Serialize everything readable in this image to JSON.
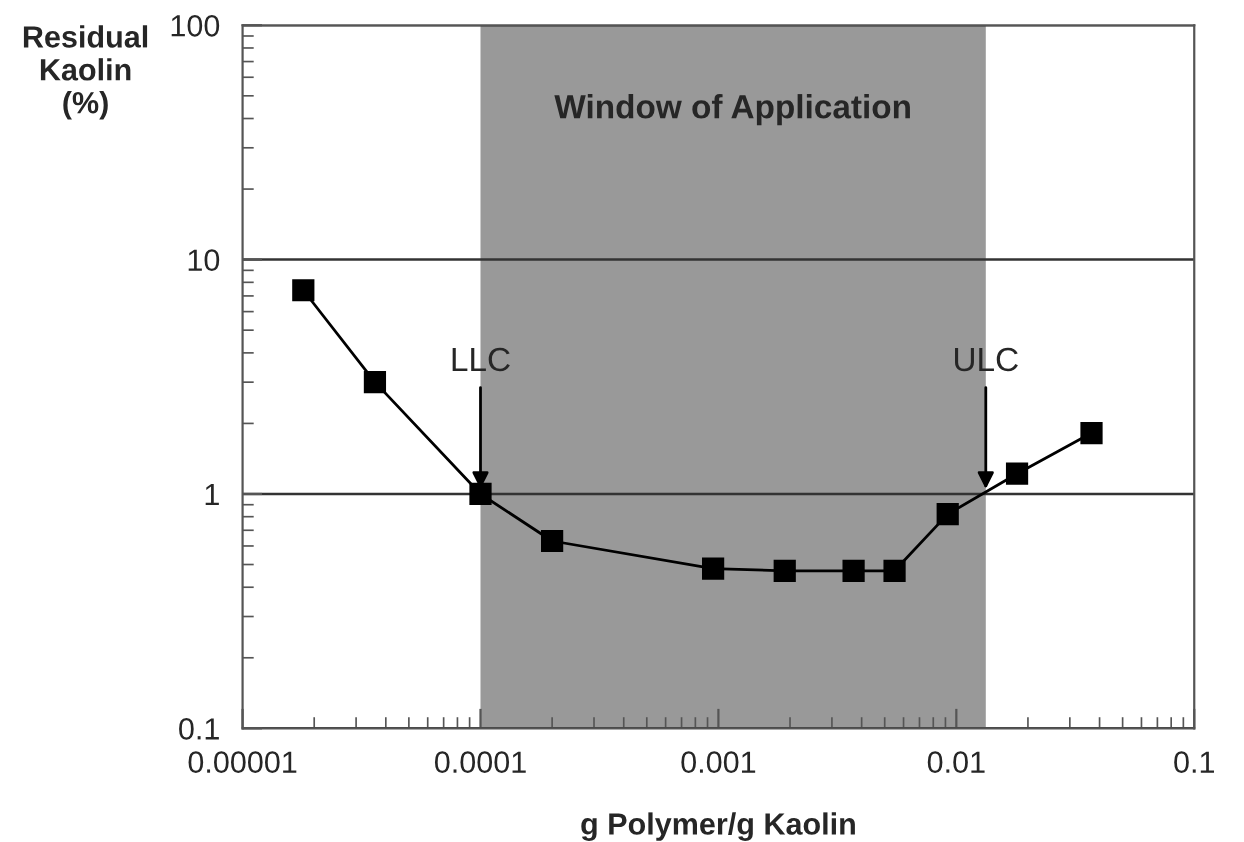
{
  "chart_data": {
    "type": "line",
    "xlabel": "g Polymer/g Kaolin",
    "ylabel": "Residual\nKaolin\n(%)",
    "x": [
      1.8e-05,
      3.6e-05,
      0.0001,
      0.0002,
      0.00095,
      0.0019,
      0.0037,
      0.0055,
      0.0092,
      0.018,
      0.037
    ],
    "series": [
      {
        "color": "#000000",
        "values": [
          7.4,
          3.0,
          1.0,
          0.63,
          0.48,
          0.47,
          0.47,
          0.47,
          0.82,
          1.22,
          1.82
        ]
      }
    ],
    "log": "xy",
    "xlim": [
      1e-05,
      0.1
    ],
    "xticks": [
      {
        "value": 1e-05,
        "label": "0.00001"
      },
      0.0001,
      0.001,
      0.01,
      0.1
    ],
    "ylim": [
      0.1,
      100
    ],
    "yticks": [
      0.1,
      1,
      10,
      100
    ],
    "grid": "y",
    "marker": "square",
    "line_style": "solid",
    "bands": [
      {
        "axis": "x",
        "from": 0.0001,
        "to": 0.0133,
        "label": "Window of Application",
        "color": "#999999"
      }
    ],
    "annotations": [
      {
        "text": "LLC",
        "x": 0.0001,
        "y": 1.05
      },
      {
        "text": "ULC",
        "x": 0.0133,
        "y": 1.05
      }
    ]
  }
}
